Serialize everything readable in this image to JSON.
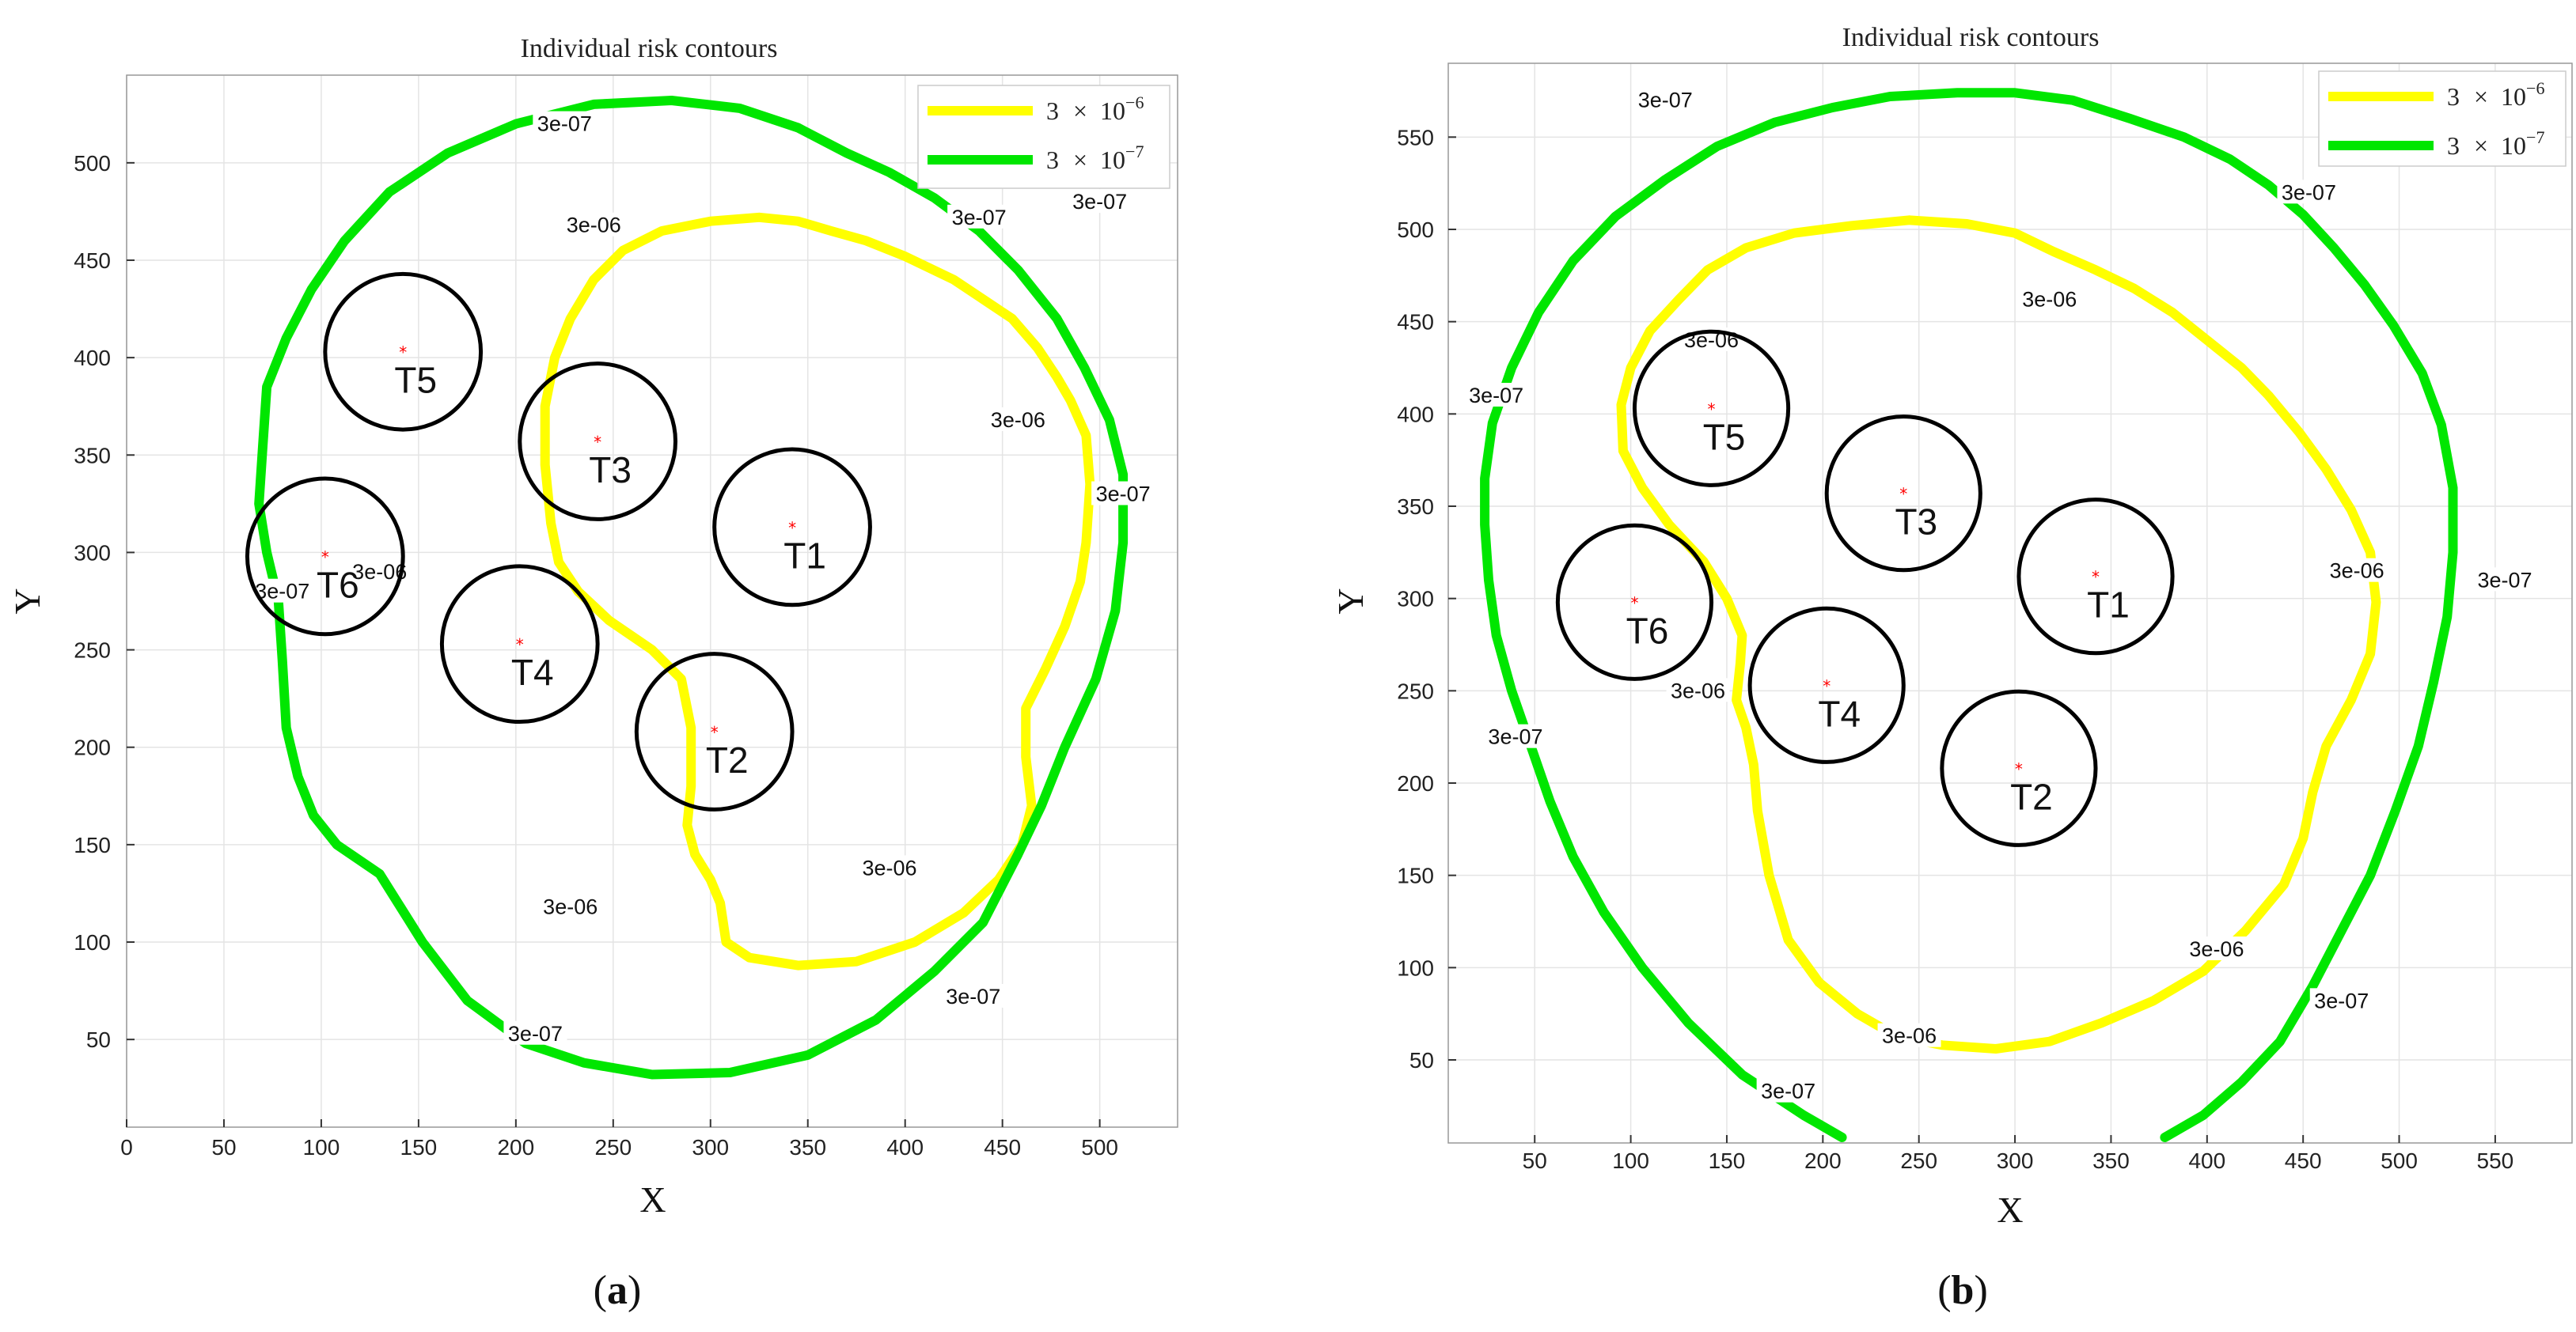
{
  "chart_data": [
    {
      "type": "contour",
      "panel": "(a)",
      "panel_letter": "a",
      "title": "Individual risk contours",
      "xlabel": "X",
      "ylabel": "Y",
      "xlim": [
        0,
        540
      ],
      "ylim": [
        5,
        545
      ],
      "xticks": [
        0,
        50,
        100,
        150,
        200,
        250,
        300,
        350,
        400,
        450,
        500
      ],
      "yticks": [
        50,
        100,
        150,
        200,
        250,
        300,
        350,
        400,
        450,
        500
      ],
      "grid": true,
      "legend_position": "top-right",
      "legend": [
        {
          "base": "3",
          "times": "×",
          "ten": "10",
          "exp": "−6",
          "color": "#ffff00"
        },
        {
          "base": "3",
          "times": "×",
          "ten": "10",
          "exp": "−7",
          "color": "#00e600"
        }
      ],
      "turbines": [
        {
          "name": "T1",
          "x": 342,
          "y": 313
        },
        {
          "name": "T2",
          "x": 302,
          "y": 208
        },
        {
          "name": "T3",
          "x": 242,
          "y": 357
        },
        {
          "name": "T4",
          "x": 202,
          "y": 253
        },
        {
          "name": "T5",
          "x": 142,
          "y": 403
        },
        {
          "name": "T6",
          "x": 102,
          "y": 298
        }
      ],
      "turbine_circle_radius": 40,
      "contours": [
        {
          "level": "3e-06",
          "color": "#ffff00",
          "points": [
            [
              305,
              120
            ],
            [
              300,
              132
            ],
            [
              292,
              145
            ],
            [
              288,
              160
            ],
            [
              290,
              180
            ],
            [
              290,
              210
            ],
            [
              285,
              235
            ],
            [
              270,
              250
            ],
            [
              248,
              265
            ],
            [
              232,
              280
            ],
            [
              222,
              295
            ],
            [
              218,
              315
            ],
            [
              215,
              345
            ],
            [
              215,
              375
            ],
            [
              220,
              400
            ],
            [
              228,
              420
            ],
            [
              240,
              440
            ],
            [
              255,
              455
            ],
            [
              275,
              465
            ],
            [
              300,
              470
            ],
            [
              325,
              472
            ],
            [
              345,
              470
            ],
            [
              362,
              465
            ],
            [
              380,
              460
            ],
            [
              400,
              452
            ],
            [
              425,
              440
            ],
            [
              440,
              430
            ],
            [
              455,
              420
            ],
            [
              468,
              405
            ],
            [
              478,
              390
            ],
            [
              485,
              378
            ],
            [
              493,
              360
            ],
            [
              495,
              335
            ],
            [
              493,
              305
            ],
            [
              490,
              285
            ],
            [
              482,
              262
            ],
            [
              472,
              240
            ],
            [
              462,
              220
            ],
            [
              462,
              195
            ],
            [
              465,
              170
            ],
            [
              460,
              150
            ],
            [
              448,
              132
            ],
            [
              430,
              115
            ],
            [
              405,
              100
            ],
            [
              375,
              90
            ],
            [
              345,
              88
            ],
            [
              320,
              92
            ],
            [
              308,
              100
            ],
            [
              305,
              120
            ]
          ],
          "labels": [
            {
              "text": "3e-06",
              "x": 240,
              "y": 468
            },
            {
              "text": "3e-06",
              "x": 458,
              "y": 368
            },
            {
              "text": "3e-06",
              "x": 130,
              "y": 290
            },
            {
              "text": "3e-06",
              "x": 228,
              "y": 118
            },
            {
              "text": "3e-06",
              "x": 392,
              "y": 138
            }
          ]
        },
        {
          "level": "3e-07",
          "color": "#00e600",
          "points": [
            [
              130,
              135
            ],
            [
              108,
              150
            ],
            [
              96,
              165
            ],
            [
              88,
              185
            ],
            [
              82,
              210
            ],
            [
              80,
              245
            ],
            [
              78,
              275
            ],
            [
              72,
              300
            ],
            [
              68,
              325
            ],
            [
              70,
              355
            ],
            [
              72,
              385
            ],
            [
              82,
              410
            ],
            [
              95,
              435
            ],
            [
              112,
              460
            ],
            [
              135,
              485
            ],
            [
              165,
              505
            ],
            [
              200,
              520
            ],
            [
              240,
              530
            ],
            [
              280,
              532
            ],
            [
              315,
              528
            ],
            [
              345,
              518
            ],
            [
              370,
              505
            ],
            [
              392,
              495
            ],
            [
              415,
              482
            ],
            [
              438,
              465
            ],
            [
              458,
              445
            ],
            [
              478,
              420
            ],
            [
              492,
              395
            ],
            [
              505,
              368
            ],
            [
              512,
              340
            ],
            [
              512,
              305
            ],
            [
              508,
              270
            ],
            [
              498,
              235
            ],
            [
              482,
              200
            ],
            [
              470,
              170
            ],
            [
              458,
              145
            ],
            [
              440,
              110
            ],
            [
              415,
              85
            ],
            [
              385,
              60
            ],
            [
              350,
              42
            ],
            [
              310,
              33
            ],
            [
              270,
              32
            ],
            [
              235,
              38
            ],
            [
              205,
              48
            ],
            [
              175,
              70
            ],
            [
              152,
              100
            ],
            [
              130,
              135
            ]
          ],
          "labels": [
            {
              "text": "3e-07",
              "x": 225,
              "y": 520
            },
            {
              "text": "3e-07",
              "x": 438,
              "y": 472
            },
            {
              "text": "3e-07",
              "x": 512,
              "y": 330
            },
            {
              "text": "3e-07",
              "x": 80,
              "y": 280
            },
            {
              "text": "3e-07",
              "x": 210,
              "y": 53
            },
            {
              "text": "3e-07",
              "x": 435,
              "y": 72
            },
            {
              "text": "3e-07",
              "x": 500,
              "y": 480
            }
          ]
        }
      ]
    },
    {
      "type": "contour",
      "panel": "(b)",
      "panel_letter": "b",
      "title": "Individual risk contours",
      "xlabel": "X",
      "ylabel": "Y",
      "xlim": [
        5,
        590
      ],
      "ylim": [
        5,
        590
      ],
      "xticks": [
        50,
        100,
        150,
        200,
        250,
        300,
        350,
        400,
        450,
        500,
        550
      ],
      "yticks": [
        50,
        100,
        150,
        200,
        250,
        300,
        350,
        400,
        450,
        500,
        550
      ],
      "grid": true,
      "legend_position": "top-right",
      "legend": [
        {
          "base": "3",
          "times": "×",
          "ten": "10",
          "exp": "−6",
          "color": "#ffff00"
        },
        {
          "base": "3",
          "times": "×",
          "ten": "10",
          "exp": "−7",
          "color": "#00e600"
        }
      ],
      "turbines": [
        {
          "name": "T1",
          "x": 342,
          "y": 312
        },
        {
          "name": "T2",
          "x": 302,
          "y": 208
        },
        {
          "name": "T3",
          "x": 242,
          "y": 357
        },
        {
          "name": "T4",
          "x": 202,
          "y": 253
        },
        {
          "name": "T5",
          "x": 142,
          "y": 403
        },
        {
          "name": "T6",
          "x": 102,
          "y": 298
        }
      ],
      "turbine_circle_radius": 40,
      "contours": [
        {
          "level": "3e-06",
          "color": "#ffff00",
          "points": [
            [
              160,
              230
            ],
            [
              155,
              245
            ],
            [
              157,
              265
            ],
            [
              158,
              280
            ],
            [
              150,
              300
            ],
            [
              138,
              320
            ],
            [
              120,
              340
            ],
            [
              106,
              360
            ],
            [
              96,
              380
            ],
            [
              95,
              405
            ],
            [
              100,
              425
            ],
            [
              110,
              445
            ],
            [
              125,
              462
            ],
            [
              140,
              478
            ],
            [
              160,
              490
            ],
            [
              185,
              498
            ],
            [
              215,
              502
            ],
            [
              245,
              505
            ],
            [
              275,
              503
            ],
            [
              300,
              498
            ],
            [
              320,
              488
            ],
            [
              342,
              478
            ],
            [
              362,
              468
            ],
            [
              382,
              455
            ],
            [
              400,
              440
            ],
            [
              418,
              425
            ],
            [
              432,
              410
            ],
            [
              448,
              390
            ],
            [
              462,
              370
            ],
            [
              475,
              348
            ],
            [
              485,
              325
            ],
            [
              488,
              298
            ],
            [
              485,
              270
            ],
            [
              475,
              245
            ],
            [
              462,
              220
            ],
            [
              455,
              195
            ],
            [
              450,
              170
            ],
            [
              440,
              145
            ],
            [
              420,
              120
            ],
            [
              398,
              98
            ],
            [
              372,
              82
            ],
            [
              345,
              70
            ],
            [
              318,
              60
            ],
            [
              290,
              56
            ],
            [
              262,
              58
            ],
            [
              238,
              63
            ],
            [
              218,
              75
            ],
            [
              198,
              92
            ],
            [
              182,
              115
            ],
            [
              172,
              150
            ],
            [
              166,
              185
            ],
            [
              164,
              210
            ],
            [
              160,
              230
            ]
          ],
          "labels": [
            {
              "text": "3e-06",
              "x": 142,
              "y": 440
            },
            {
              "text": "3e-06",
              "x": 318,
              "y": 462
            },
            {
              "text": "3e-06",
              "x": 478,
              "y": 315
            },
            {
              "text": "3e-06",
              "x": 135,
              "y": 250
            },
            {
              "text": "3e-06",
              "x": 245,
              "y": 63
            },
            {
              "text": "3e-06",
              "x": 405,
              "y": 110
            }
          ]
        },
        {
          "level": "3e-07",
          "color": "#00e600",
          "points": [
            [
              210,
              8
            ],
            [
              190,
              20
            ],
            [
              158,
              42
            ],
            [
              130,
              70
            ],
            [
              106,
              100
            ],
            [
              86,
              130
            ],
            [
              70,
              160
            ],
            [
              58,
              190
            ],
            [
              48,
              220
            ],
            [
              38,
              250
            ],
            [
              30,
              280
            ],
            [
              26,
              310
            ],
            [
              24,
              340
            ],
            [
              24,
              365
            ],
            [
              28,
              395
            ],
            [
              38,
              425
            ],
            [
              52,
              455
            ],
            [
              70,
              483
            ],
            [
              92,
              507
            ],
            [
              118,
              527
            ],
            [
              145,
              545
            ],
            [
              175,
              558
            ],
            [
              205,
              566
            ],
            [
              235,
              572
            ],
            [
              270,
              574
            ],
            [
              300,
              574
            ],
            [
              330,
              570
            ],
            [
              360,
              560
            ],
            [
              388,
              550
            ],
            [
              412,
              538
            ],
            [
              432,
              524
            ],
            [
              450,
              508
            ],
            [
              466,
              490
            ],
            [
              482,
              470
            ],
            [
              497,
              448
            ],
            [
              512,
              422
            ],
            [
              522,
              394
            ],
            [
              528,
              360
            ],
            [
              528,
              325
            ],
            [
              525,
              290
            ],
            [
              518,
              255
            ],
            [
              510,
              220
            ],
            [
              498,
              185
            ],
            [
              485,
              150
            ],
            [
              470,
              120
            ],
            [
              455,
              90
            ],
            [
              438,
              60
            ],
            [
              418,
              38
            ],
            [
              398,
              20
            ],
            [
              378,
              8
            ]
          ],
          "labels": [
            {
              "text": "3e-07",
              "x": 118,
              "y": 570
            },
            {
              "text": "3e-07",
              "x": 30,
              "y": 410
            },
            {
              "text": "3e-07",
              "x": 40,
              "y": 225
            },
            {
              "text": "3e-07",
              "x": 182,
              "y": 33
            },
            {
              "text": "3e-07",
              "x": 453,
              "y": 520
            },
            {
              "text": "3e-07",
              "x": 555,
              "y": 310
            },
            {
              "text": "3e-07",
              "x": 470,
              "y": 82
            }
          ]
        }
      ]
    }
  ]
}
